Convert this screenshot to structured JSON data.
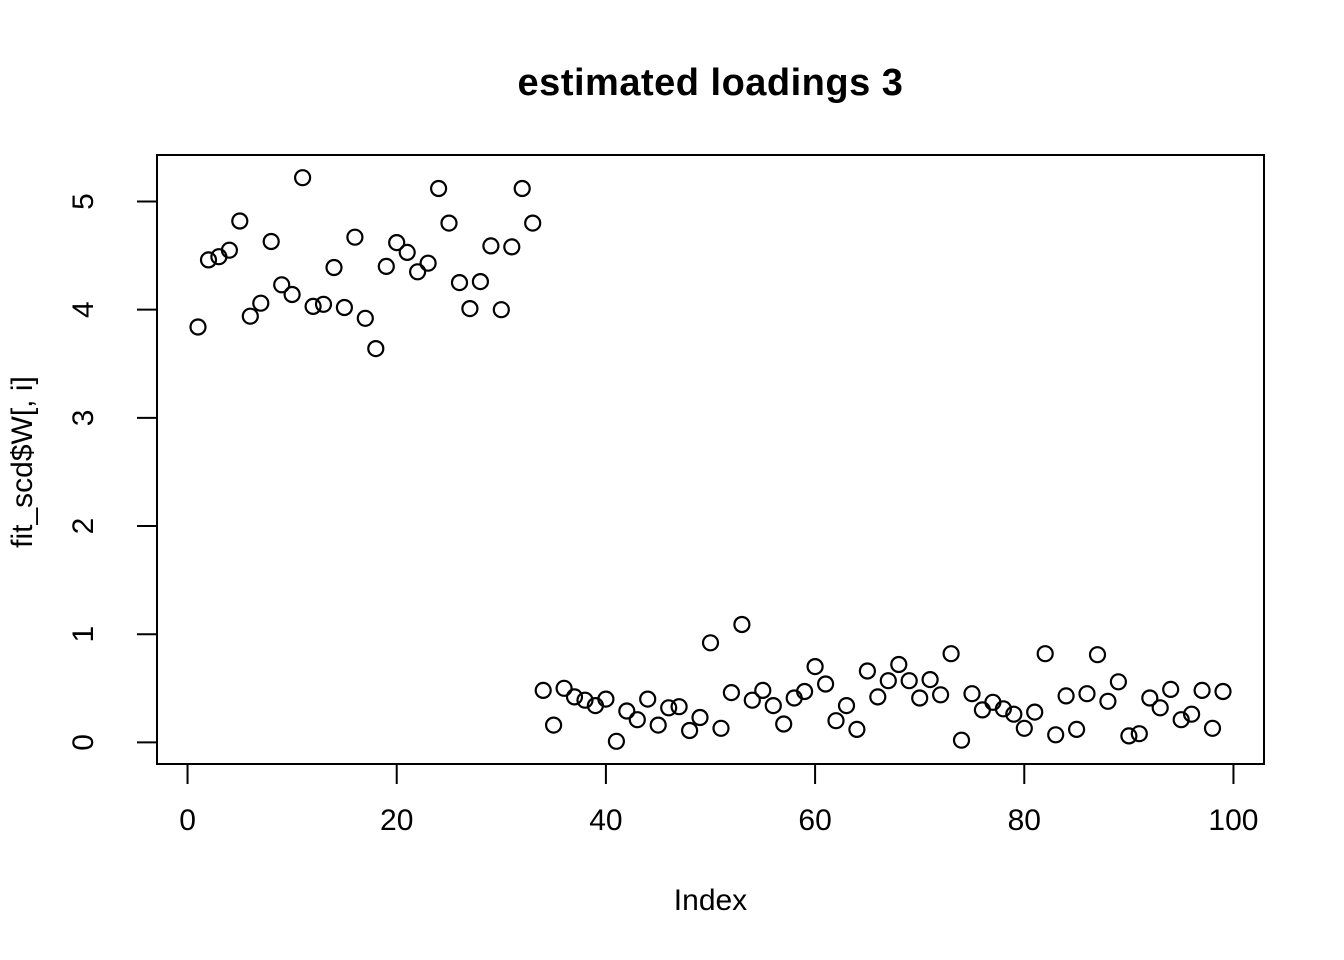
{
  "chart_data": {
    "type": "scatter",
    "title": "estimated loadings 3",
    "xlabel": "Index",
    "ylabel": "fit_scd$W[, i]",
    "point_style": "open-circle",
    "point_color": "#000000",
    "background_color": "#ffffff",
    "grid": false,
    "legend": false,
    "x_ticks": [
      0,
      20,
      40,
      60,
      80,
      100
    ],
    "y_ticks": [
      0,
      1,
      2,
      3,
      4,
      5
    ],
    "xlim": [
      -2.92,
      102.92
    ],
    "ylim": [
      -0.2,
      5.43
    ],
    "x": [
      1,
      2,
      3,
      4,
      5,
      6,
      7,
      8,
      9,
      10,
      11,
      12,
      13,
      14,
      15,
      16,
      17,
      18,
      19,
      20,
      21,
      22,
      23,
      24,
      25,
      26,
      27,
      28,
      29,
      30,
      31,
      32,
      33,
      34,
      35,
      36,
      37,
      38,
      39,
      40,
      41,
      42,
      43,
      44,
      45,
      46,
      47,
      48,
      49,
      50,
      51,
      52,
      53,
      54,
      55,
      56,
      57,
      58,
      59,
      60,
      61,
      62,
      63,
      64,
      65,
      66,
      67,
      68,
      69,
      70,
      71,
      72,
      73,
      74,
      75,
      76,
      77,
      78,
      79,
      80,
      81,
      82,
      83,
      84,
      85,
      86,
      87,
      88,
      89,
      90,
      91,
      92,
      93,
      94,
      95,
      96,
      97,
      98,
      99
    ],
    "y": [
      3.84,
      4.46,
      4.49,
      4.55,
      4.82,
      3.94,
      4.06,
      4.63,
      4.23,
      4.14,
      5.22,
      4.03,
      4.05,
      4.39,
      4.02,
      4.67,
      3.92,
      3.64,
      4.4,
      4.62,
      4.53,
      4.35,
      4.43,
      5.12,
      4.8,
      4.25,
      4.01,
      4.26,
      4.59,
      4.0,
      4.58,
      5.12,
      4.8,
      0.48,
      0.16,
      0.5,
      0.42,
      0.39,
      0.34,
      0.4,
      0.01,
      0.29,
      0.21,
      0.4,
      0.16,
      0.32,
      0.33,
      0.11,
      0.23,
      0.92,
      0.13,
      0.46,
      1.09,
      0.39,
      0.48,
      0.34,
      0.17,
      0.41,
      0.47,
      0.7,
      0.54,
      0.2,
      0.34,
      0.12,
      0.66,
      0.42,
      0.57,
      0.72,
      0.57,
      0.41,
      0.58,
      0.44,
      0.82,
      0.02,
      0.45,
      0.3,
      0.37,
      0.31,
      0.26,
      0.13,
      0.28,
      0.82,
      0.07,
      0.43,
      0.12,
      0.45,
      0.81,
      0.38,
      0.56,
      0.06,
      0.08,
      0.41,
      0.32,
      0.49,
      0.21,
      0.26,
      0.48,
      0.13,
      0.47
    ]
  }
}
